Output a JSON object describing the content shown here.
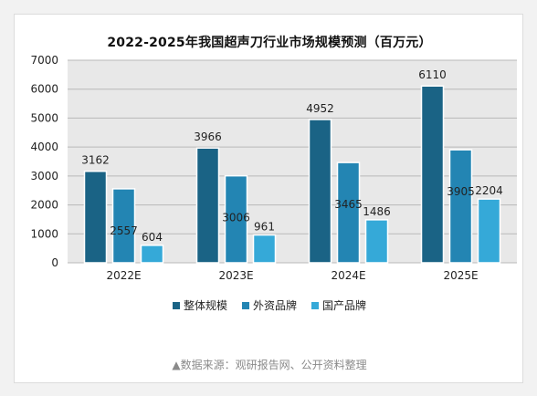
{
  "chart_data": {
    "type": "bar",
    "title": "2022-2025年我国超声刀行业市场规模预测（百万元）",
    "categories": [
      "2022E",
      "2023E",
      "2024E",
      "2025E"
    ],
    "series": [
      {
        "name": "整体规模",
        "values": [
          3162,
          3966,
          4952,
          6110
        ],
        "color": "#1a6385"
      },
      {
        "name": "外资品牌",
        "values": [
          2557,
          3006,
          3465,
          3905
        ],
        "color": "#2385b3"
      },
      {
        "name": "国产品牌",
        "values": [
          604,
          961,
          1486,
          2204
        ],
        "color": "#35a9d8"
      }
    ],
    "ylim": [
      0,
      7000
    ],
    "yticks": [
      "0",
      "1000",
      "2000",
      "3000",
      "4000",
      "5000",
      "6000",
      "7000"
    ],
    "xlabel": "",
    "ylabel": "",
    "grid": true,
    "legend_position": "bottom"
  },
  "footer": {
    "source": "▲数据来源：观研报告网、公开资料整理"
  }
}
